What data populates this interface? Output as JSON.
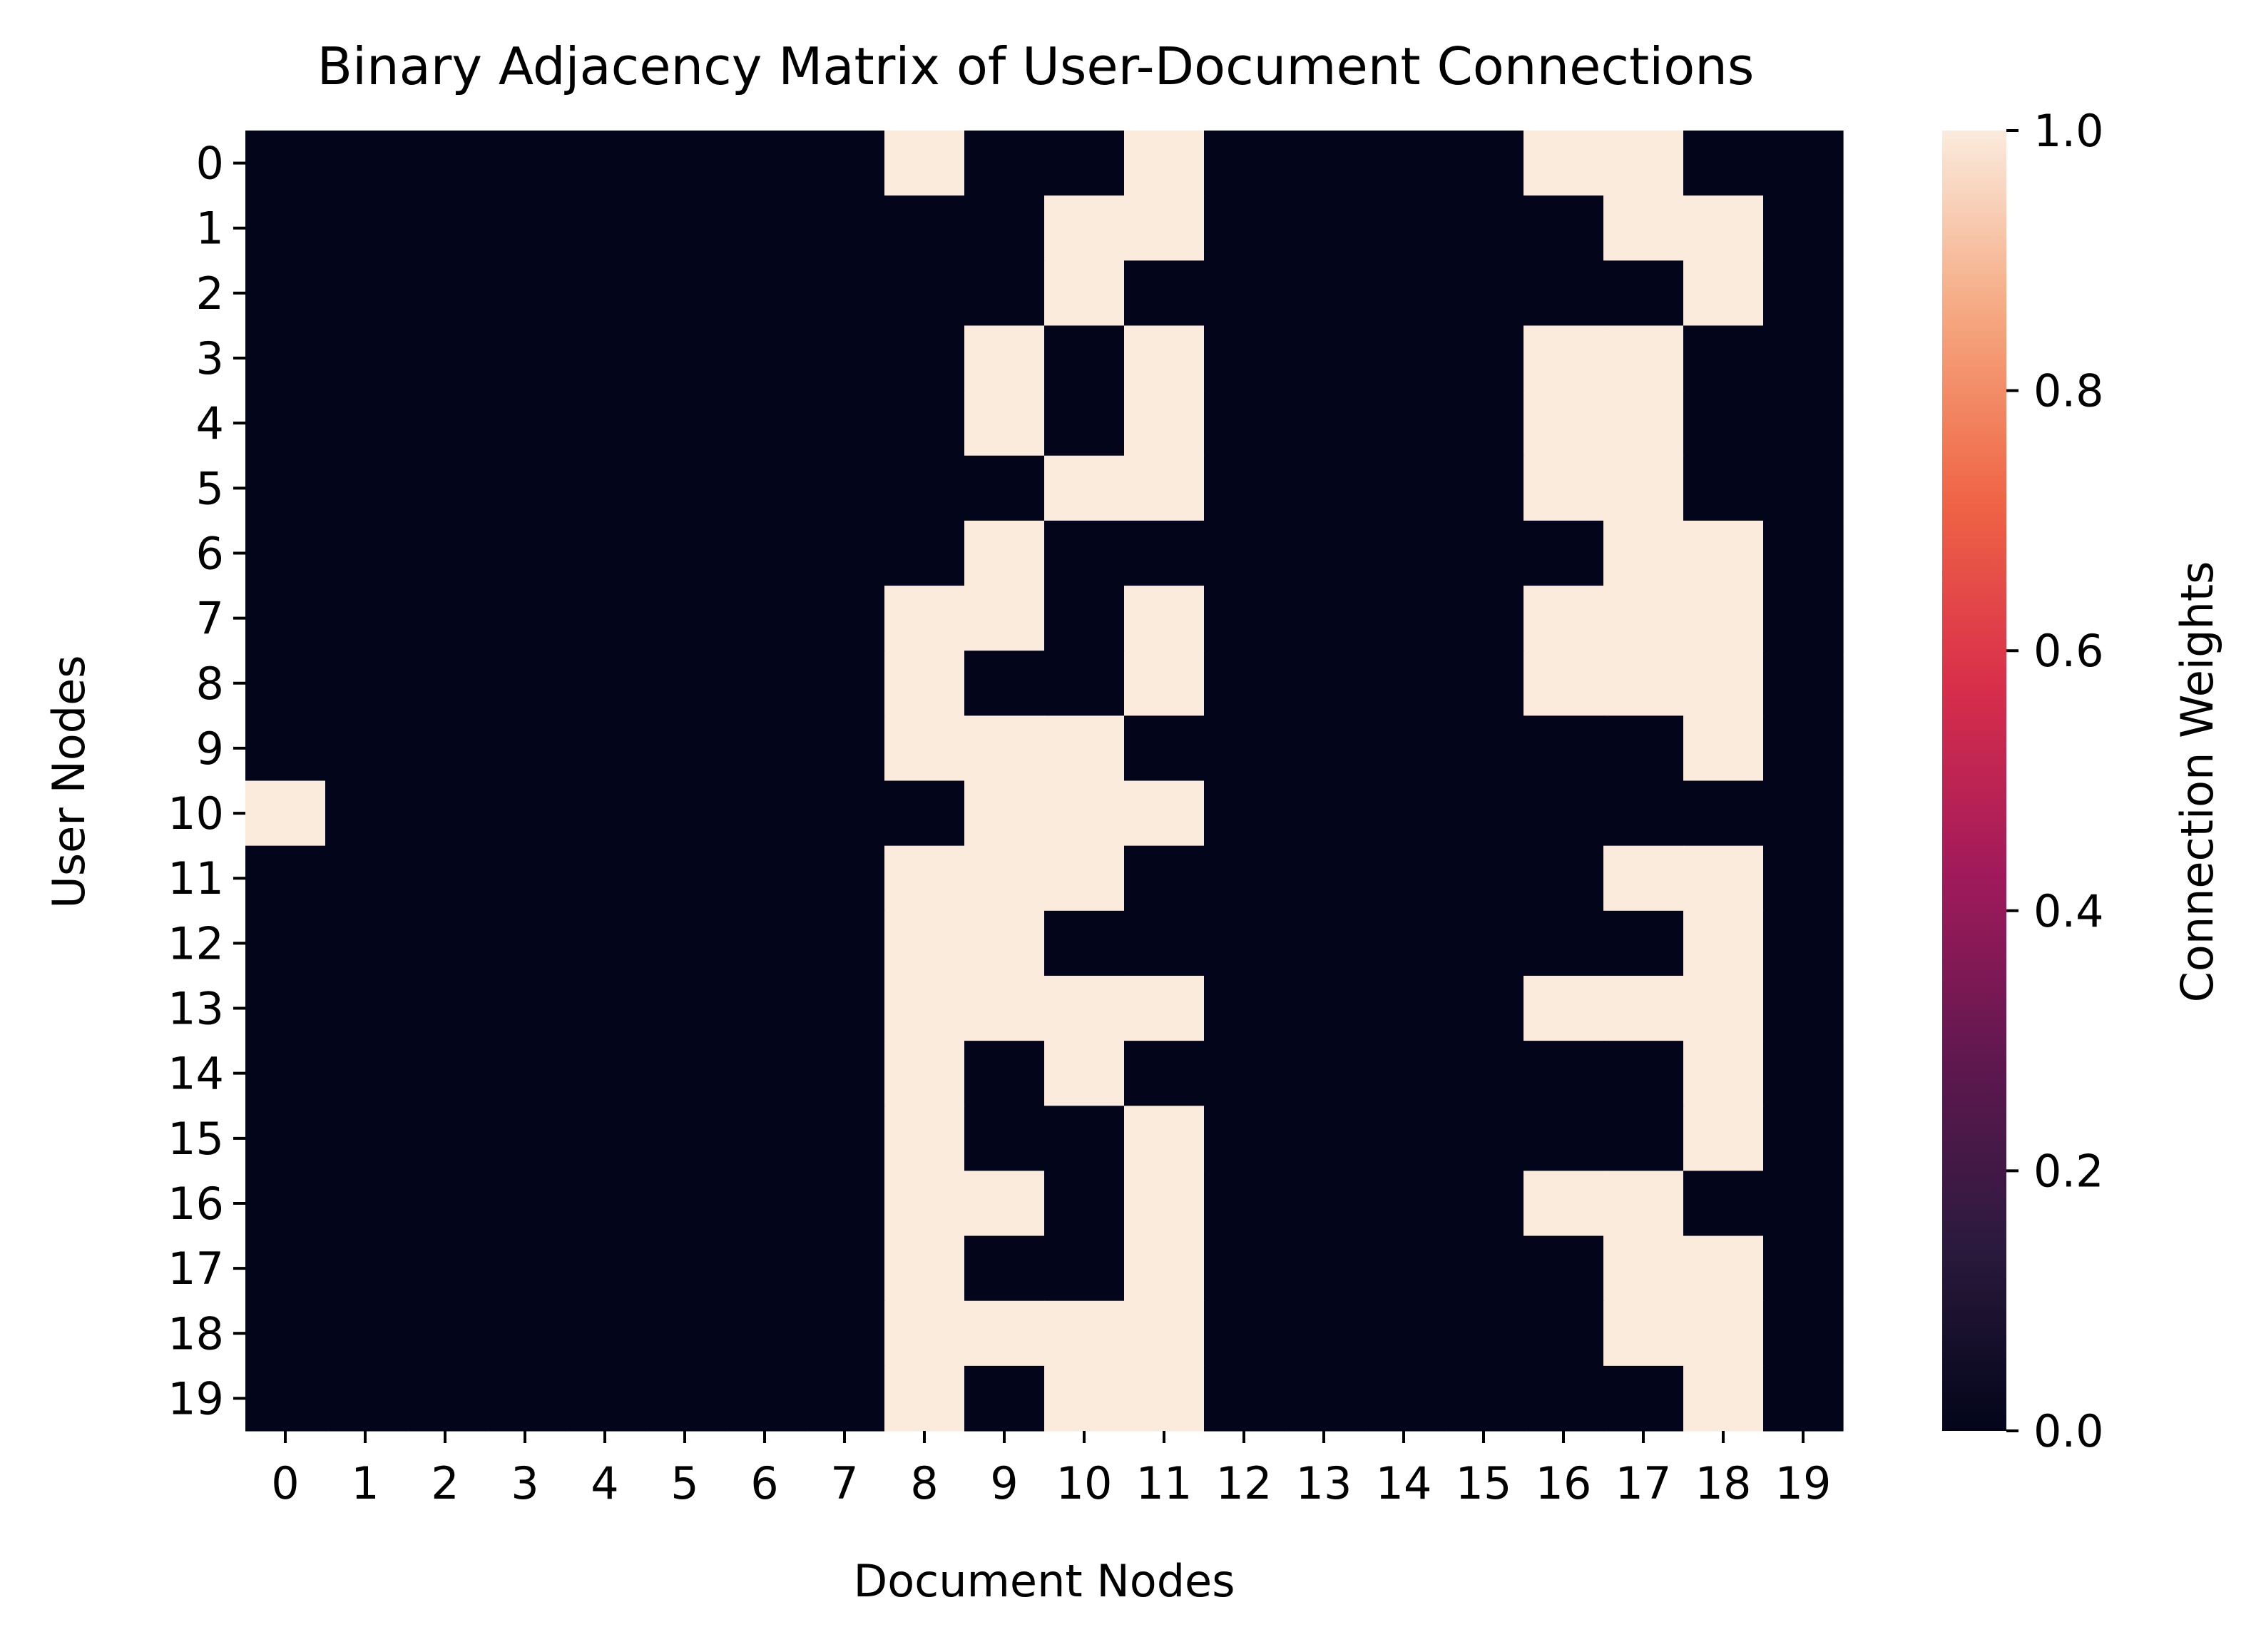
{
  "chart_data": {
    "type": "heatmap",
    "title": "Binary Adjacency Matrix of User-Document Connections",
    "xlabel": "Document Nodes",
    "ylabel": "User Nodes",
    "x_ticks": [
      "0",
      "1",
      "2",
      "3",
      "4",
      "5",
      "6",
      "7",
      "8",
      "9",
      "10",
      "11",
      "12",
      "13",
      "14",
      "15",
      "16",
      "17",
      "18",
      "19"
    ],
    "y_ticks": [
      "0",
      "1",
      "2",
      "3",
      "4",
      "5",
      "6",
      "7",
      "8",
      "9",
      "10",
      "11",
      "12",
      "13",
      "14",
      "15",
      "16",
      "17",
      "18",
      "19"
    ],
    "colorbar": {
      "label": "Connection Weights",
      "range": [
        0.0,
        1.0
      ],
      "ticks": [
        "0.0",
        "0.2",
        "0.4",
        "0.6",
        "0.8",
        "1.0"
      ],
      "colormap": "rocket",
      "stops": [
        "#03051a",
        "#2b1a3d",
        "#60184f",
        "#a11a5b",
        "#d82e4b",
        "#ef6445",
        "#f5a77f",
        "#faebdd"
      ]
    },
    "colors": {
      "zero": "#03051a",
      "one": "#faebdd"
    },
    "matrix": [
      [
        0,
        0,
        0,
        0,
        0,
        0,
        0,
        0,
        1,
        0,
        0,
        1,
        0,
        0,
        0,
        0,
        1,
        1,
        0,
        0
      ],
      [
        0,
        0,
        0,
        0,
        0,
        0,
        0,
        0,
        0,
        0,
        1,
        1,
        0,
        0,
        0,
        0,
        0,
        1,
        1,
        0
      ],
      [
        0,
        0,
        0,
        0,
        0,
        0,
        0,
        0,
        0,
        0,
        1,
        0,
        0,
        0,
        0,
        0,
        0,
        0,
        1,
        0
      ],
      [
        0,
        0,
        0,
        0,
        0,
        0,
        0,
        0,
        0,
        1,
        0,
        1,
        0,
        0,
        0,
        0,
        1,
        1,
        0,
        0
      ],
      [
        0,
        0,
        0,
        0,
        0,
        0,
        0,
        0,
        0,
        1,
        0,
        1,
        0,
        0,
        0,
        0,
        1,
        1,
        0,
        0
      ],
      [
        0,
        0,
        0,
        0,
        0,
        0,
        0,
        0,
        0,
        0,
        1,
        1,
        0,
        0,
        0,
        0,
        1,
        1,
        0,
        0
      ],
      [
        0,
        0,
        0,
        0,
        0,
        0,
        0,
        0,
        0,
        1,
        0,
        0,
        0,
        0,
        0,
        0,
        0,
        1,
        1,
        0
      ],
      [
        0,
        0,
        0,
        0,
        0,
        0,
        0,
        0,
        1,
        1,
        0,
        1,
        0,
        0,
        0,
        0,
        1,
        1,
        1,
        0
      ],
      [
        0,
        0,
        0,
        0,
        0,
        0,
        0,
        0,
        1,
        0,
        0,
        1,
        0,
        0,
        0,
        0,
        1,
        1,
        1,
        0
      ],
      [
        0,
        0,
        0,
        0,
        0,
        0,
        0,
        0,
        1,
        1,
        1,
        0,
        0,
        0,
        0,
        0,
        0,
        0,
        1,
        0
      ],
      [
        1,
        0,
        0,
        0,
        0,
        0,
        0,
        0,
        0,
        1,
        1,
        1,
        0,
        0,
        0,
        0,
        0,
        0,
        0,
        0
      ],
      [
        0,
        0,
        0,
        0,
        0,
        0,
        0,
        0,
        1,
        1,
        1,
        0,
        0,
        0,
        0,
        0,
        0,
        1,
        1,
        0
      ],
      [
        0,
        0,
        0,
        0,
        0,
        0,
        0,
        0,
        1,
        1,
        0,
        0,
        0,
        0,
        0,
        0,
        0,
        0,
        1,
        0
      ],
      [
        0,
        0,
        0,
        0,
        0,
        0,
        0,
        0,
        1,
        1,
        1,
        1,
        0,
        0,
        0,
        0,
        1,
        1,
        1,
        0
      ],
      [
        0,
        0,
        0,
        0,
        0,
        0,
        0,
        0,
        1,
        0,
        1,
        0,
        0,
        0,
        0,
        0,
        0,
        0,
        1,
        0
      ],
      [
        0,
        0,
        0,
        0,
        0,
        0,
        0,
        0,
        1,
        0,
        0,
        1,
        0,
        0,
        0,
        0,
        0,
        0,
        1,
        0
      ],
      [
        0,
        0,
        0,
        0,
        0,
        0,
        0,
        0,
        1,
        1,
        0,
        1,
        0,
        0,
        0,
        0,
        1,
        1,
        0,
        0
      ],
      [
        0,
        0,
        0,
        0,
        0,
        0,
        0,
        0,
        1,
        0,
        0,
        1,
        0,
        0,
        0,
        0,
        0,
        1,
        1,
        0
      ],
      [
        0,
        0,
        0,
        0,
        0,
        0,
        0,
        0,
        1,
        1,
        1,
        1,
        0,
        0,
        0,
        0,
        0,
        1,
        1,
        0
      ],
      [
        0,
        0,
        0,
        0,
        0,
        0,
        0,
        0,
        1,
        0,
        1,
        1,
        0,
        0,
        0,
        0,
        0,
        0,
        1,
        0
      ]
    ]
  }
}
